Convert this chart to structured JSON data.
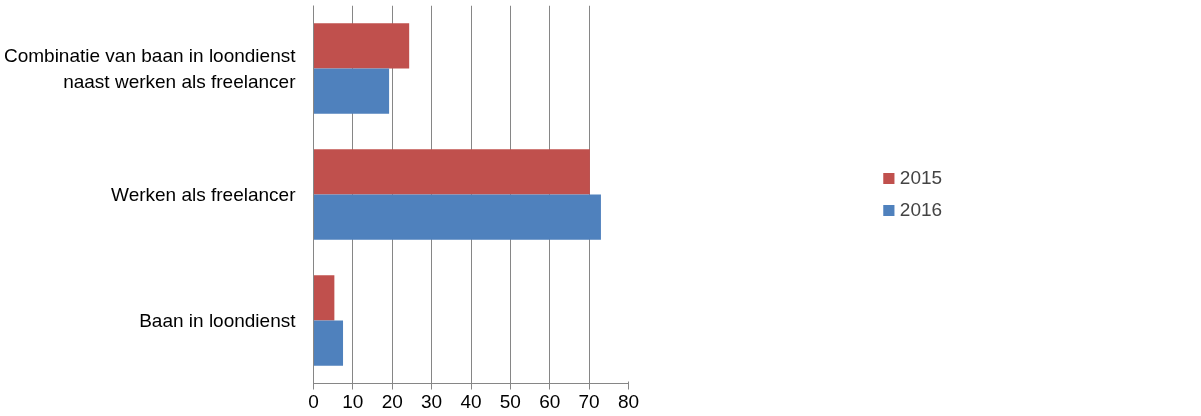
{
  "chart_data": {
    "type": "bar",
    "orientation": "horizontal",
    "categories": [
      "Combinatie van baan in loondienst naast werken als freelancer",
      "Werken als freelancer",
      "Baan in loondienst"
    ],
    "series": [
      {
        "name": "2015",
        "color": "#c0504d",
        "values": [
          24.3,
          70.2,
          5.3
        ]
      },
      {
        "name": "2016",
        "color": "#4f81bd",
        "values": [
          19.2,
          73,
          7.5
        ]
      }
    ],
    "xlim": [
      0,
      80
    ],
    "xticks": [
      0,
      10,
      20,
      30,
      40,
      50,
      60,
      70,
      80
    ],
    "grid": "x",
    "legend": "right"
  }
}
